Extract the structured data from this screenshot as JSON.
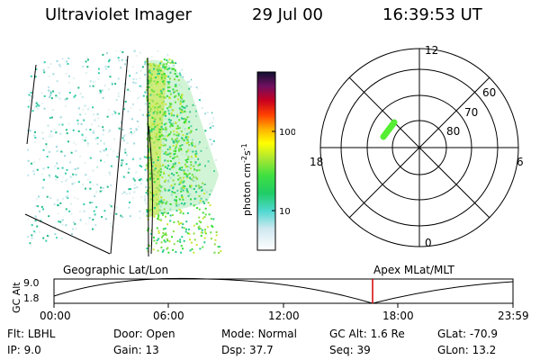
{
  "header": {
    "instrument": "Ultraviolet Imager",
    "date": "29 Jul 00",
    "time": "16:39:53 UT"
  },
  "colorbar": {
    "label": "photon cm",
    "label_exp": "-2",
    "label_mid": "s",
    "label_exp2": "-1",
    "ticks": [
      "100",
      "10"
    ]
  },
  "polar": {
    "mlt_labels": [
      "12",
      "18",
      "6",
      "0"
    ],
    "lat_labels": [
      "60",
      "70",
      "80"
    ]
  },
  "timeline": {
    "ylabel": "GC Alt",
    "yticks": [
      "9.0",
      "1.8"
    ],
    "left_label": "Geographic Lat/Lon",
    "right_label": "Apex MLat/MLT",
    "xticks": [
      "00:00",
      "06:00",
      "12:00",
      "18:00",
      "23:59"
    ]
  },
  "footer": {
    "row1": [
      {
        "key": "Flt:",
        "val": "LBHL"
      },
      {
        "key": "Door:",
        "val": "Open"
      },
      {
        "key": "Mode:",
        "val": "Normal"
      },
      {
        "key": "GC Alt:",
        "val": "1.6 Re"
      },
      {
        "key": "GLat:",
        "val": "-70.9"
      }
    ],
    "row2": [
      {
        "key": "IP:",
        "val": "9.0"
      },
      {
        "key": "Gain:",
        "val": "13"
      },
      {
        "key": "Dsp:",
        "val": "37.7"
      },
      {
        "key": "Seq:",
        "val": "39"
      },
      {
        "key": "GLon:",
        "val": "13.2"
      }
    ]
  },
  "colors": {
    "accent_marker": "#d40000",
    "auroral_green": "#33dd33",
    "auroral_yellow": "#c8e632",
    "teal": "#22cc99"
  }
}
